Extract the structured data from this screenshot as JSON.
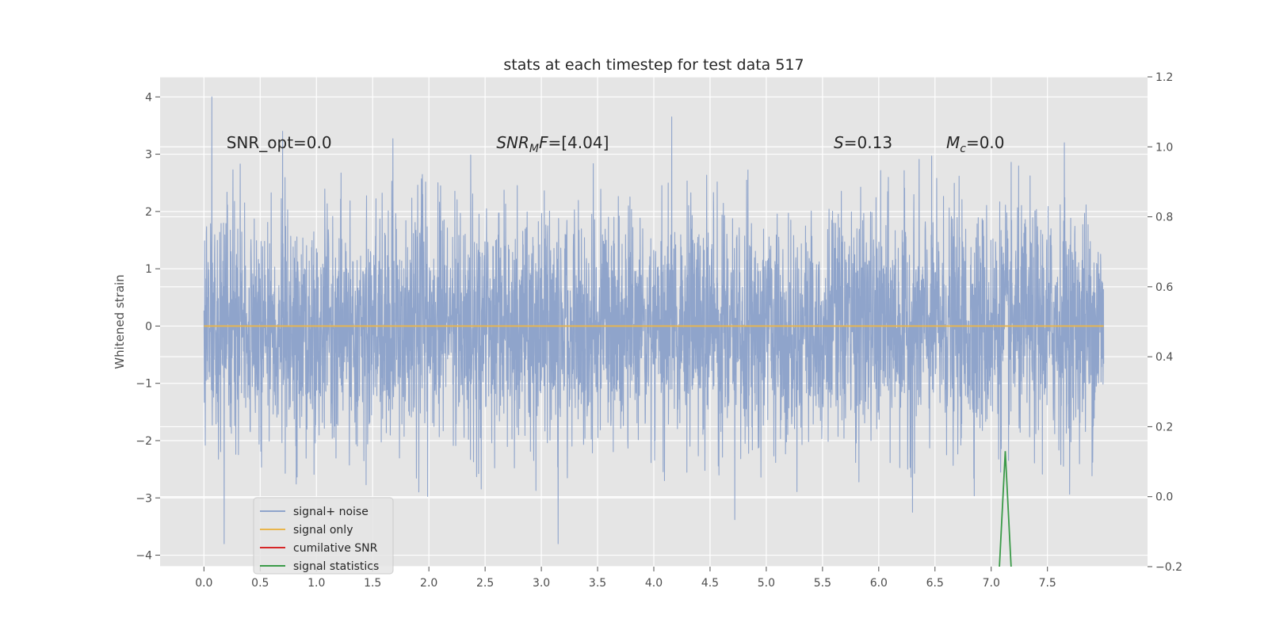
{
  "chart_data": {
    "type": "line",
    "title": "stats at each timestep for test data 517",
    "ylabel": "Whitened strain",
    "xlabel": "",
    "xlim": [
      -0.39,
      8.39
    ],
    "ylim": [
      -4.2,
      4.35
    ],
    "y2lim": [
      -0.2,
      1.2
    ],
    "xticks": [
      0.0,
      0.5,
      1.0,
      1.5,
      2.0,
      2.5,
      3.0,
      3.5,
      4.0,
      4.5,
      5.0,
      5.5,
      6.0,
      6.5,
      7.0,
      7.5
    ],
    "xtick_labels": [
      "0.0",
      "0.5",
      "1.0",
      "1.5",
      "2.0",
      "2.5",
      "3.0",
      "3.5",
      "4.0",
      "4.5",
      "5.0",
      "5.5",
      "6.0",
      "6.5",
      "7.0",
      "7.5"
    ],
    "yticks": [
      -4,
      -3,
      -2,
      -1,
      0,
      1,
      2,
      3,
      4
    ],
    "ytick_labels": [
      "−4",
      "−3",
      "−2",
      "−1",
      "0",
      "1",
      "2",
      "3",
      "4"
    ],
    "y2ticks": [
      -0.2,
      0.0,
      0.2,
      0.4,
      0.6,
      0.8,
      1.0,
      1.2
    ],
    "y2tick_labels": [
      "−0.2",
      "0.0",
      "0.2",
      "0.4",
      "0.6",
      "0.8",
      "1.0",
      "1.2"
    ],
    "grid": true,
    "legend_position": "lower-left",
    "annotations": [
      {
        "id": "snr-opt",
        "text": "SNR_opt=0.0",
        "x": 0.2,
        "y": 3.2
      },
      {
        "id": "snr-mf",
        "text": "SNR_MF=[4.04]",
        "x": 2.6,
        "y": 3.2
      },
      {
        "id": "s-stat",
        "text": "S=0.13",
        "x": 5.6,
        "y": 3.2
      },
      {
        "id": "mc",
        "text": "M_c=0.0",
        "x": 6.6,
        "y": 3.2
      }
    ],
    "series": [
      {
        "name": "signal+ noise",
        "axis": "left",
        "color": "#8fa4cb",
        "x_range": [
          0.0,
          8.0
        ],
        "n_points": 4096,
        "std": 1.0,
        "notable_extremes": [
          {
            "x": 0.07,
            "y": 4.0
          },
          {
            "x": 4.16,
            "y": 3.65
          },
          {
            "x": 0.7,
            "y": 3.4
          },
          {
            "x": 1.68,
            "y": 3.27
          },
          {
            "x": 7.65,
            "y": 3.2
          },
          {
            "x": 3.15,
            "y": -3.8
          },
          {
            "x": 0.18,
            "y": -3.8
          },
          {
            "x": 4.72,
            "y": -3.38
          },
          {
            "x": 6.3,
            "y": -3.25
          }
        ]
      },
      {
        "name": "signal only",
        "axis": "left",
        "color": "#e9b54c",
        "x": [
          0.0,
          8.0
        ],
        "y": [
          0.0,
          0.0
        ]
      },
      {
        "name": "cumilative SNR",
        "axis": "left",
        "color": "#d62728",
        "x": [],
        "y": []
      },
      {
        "name": "signal statistics",
        "axis": "right",
        "color": "#3a9a48",
        "x": [
          7.07,
          7.125,
          7.18
        ],
        "y": [
          -0.22,
          0.13,
          -0.22
        ]
      }
    ]
  },
  "legend": {
    "items": [
      {
        "label": "signal+ noise",
        "color": "#8fa4cb"
      },
      {
        "label": "signal only",
        "color": "#e9b54c"
      },
      {
        "label": "cumilative SNR",
        "color": "#d62728"
      },
      {
        "label": "signal statistics",
        "color": "#3a9a48"
      }
    ]
  },
  "colors": {
    "plot_background": "#e5e5e5",
    "grid": "#ffffff",
    "title_text": "#262626",
    "tick_text": "#4d4d4d"
  }
}
